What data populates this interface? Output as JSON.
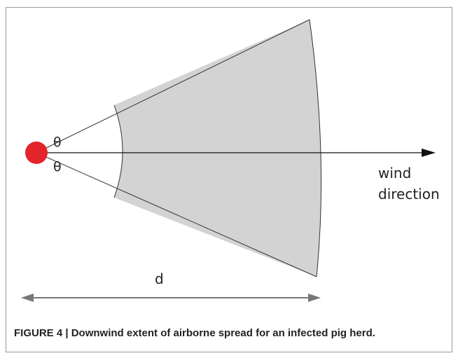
{
  "figure": {
    "labels": {
      "angle_upper": "θ",
      "angle_lower": "θ",
      "wind_direction": [
        "wind",
        "direction"
      ],
      "distance": "d"
    },
    "caption": "FIGURE 4 | Downwind extent of airborne spread for an infected pig herd."
  }
}
